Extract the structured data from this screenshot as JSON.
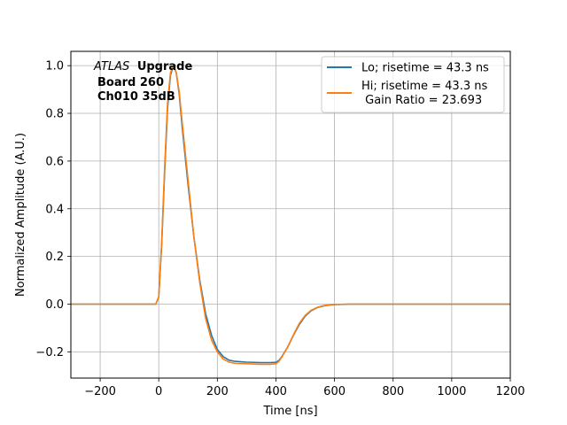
{
  "chart_data": {
    "type": "line",
    "xlabel": "Time [ns]",
    "ylabel": "Normalized Amplitude (A.U.)",
    "xlim": [
      -300,
      1200
    ],
    "ylim": [
      -0.31,
      1.06
    ],
    "xticks": [
      -200,
      0,
      200,
      400,
      600,
      800,
      1000,
      1200
    ],
    "xtick_labels": [
      "−200",
      "0",
      "200",
      "400",
      "600",
      "800",
      "1000",
      "1200"
    ],
    "yticks": [
      -0.2,
      0.0,
      0.2,
      0.4,
      0.6,
      0.8,
      1.0
    ],
    "ytick_labels": [
      "−0.2",
      "0.0",
      "0.2",
      "0.4",
      "0.6",
      "0.8",
      "1.0"
    ],
    "grid": true,
    "legend_position": "top-right",
    "annotation": {
      "italic": "ATLAS",
      "bold": "Upgrade",
      "line2": "Board 260",
      "line3": "Ch010 35dB"
    },
    "series": [
      {
        "name": "Lo; risetime = 43.3 ns",
        "color": "#1f77b4",
        "x": [
          -300,
          -200,
          -100,
          -10,
          0,
          10,
          20,
          30,
          40,
          50,
          60,
          70,
          80,
          100,
          120,
          140,
          160,
          180,
          200,
          220,
          240,
          260,
          300,
          350,
          380,
          400,
          410,
          420,
          440,
          460,
          480,
          500,
          520,
          540,
          560,
          580,
          600,
          650,
          700,
          800,
          900,
          1000,
          1100,
          1200
        ],
        "y": [
          0.0,
          0.0,
          0.0,
          0.0,
          0.03,
          0.25,
          0.55,
          0.82,
          0.96,
          1.0,
          0.97,
          0.88,
          0.74,
          0.5,
          0.28,
          0.1,
          -0.04,
          -0.13,
          -0.19,
          -0.22,
          -0.235,
          -0.24,
          -0.243,
          -0.245,
          -0.245,
          -0.244,
          -0.236,
          -0.22,
          -0.18,
          -0.13,
          -0.085,
          -0.05,
          -0.028,
          -0.015,
          -0.008,
          -0.004,
          -0.002,
          0.0,
          0.0,
          0.0,
          0.0,
          0.0,
          0.0,
          0.0
        ]
      },
      {
        "name": "Hi; risetime = 43.3 ns\n Gain Ratio = 23.693",
        "color": "#ff7f0e",
        "x": [
          -300,
          -200,
          -100,
          -10,
          0,
          10,
          20,
          30,
          40,
          50,
          60,
          70,
          80,
          100,
          120,
          140,
          160,
          180,
          200,
          220,
          240,
          260,
          300,
          350,
          380,
          400,
          410,
          420,
          440,
          460,
          480,
          500,
          520,
          540,
          560,
          580,
          600,
          650,
          700,
          800,
          900,
          1000,
          1100,
          1200
        ],
        "y": [
          0.0,
          0.0,
          0.0,
          0.0,
          0.03,
          0.26,
          0.57,
          0.84,
          0.97,
          1.0,
          0.97,
          0.89,
          0.76,
          0.52,
          0.28,
          0.09,
          -0.06,
          -0.15,
          -0.2,
          -0.23,
          -0.243,
          -0.248,
          -0.25,
          -0.252,
          -0.252,
          -0.25,
          -0.24,
          -0.222,
          -0.18,
          -0.128,
          -0.08,
          -0.047,
          -0.026,
          -0.014,
          -0.007,
          -0.003,
          -0.001,
          0.0,
          0.0,
          0.0,
          0.0,
          0.0,
          0.0,
          0.0
        ]
      }
    ]
  }
}
